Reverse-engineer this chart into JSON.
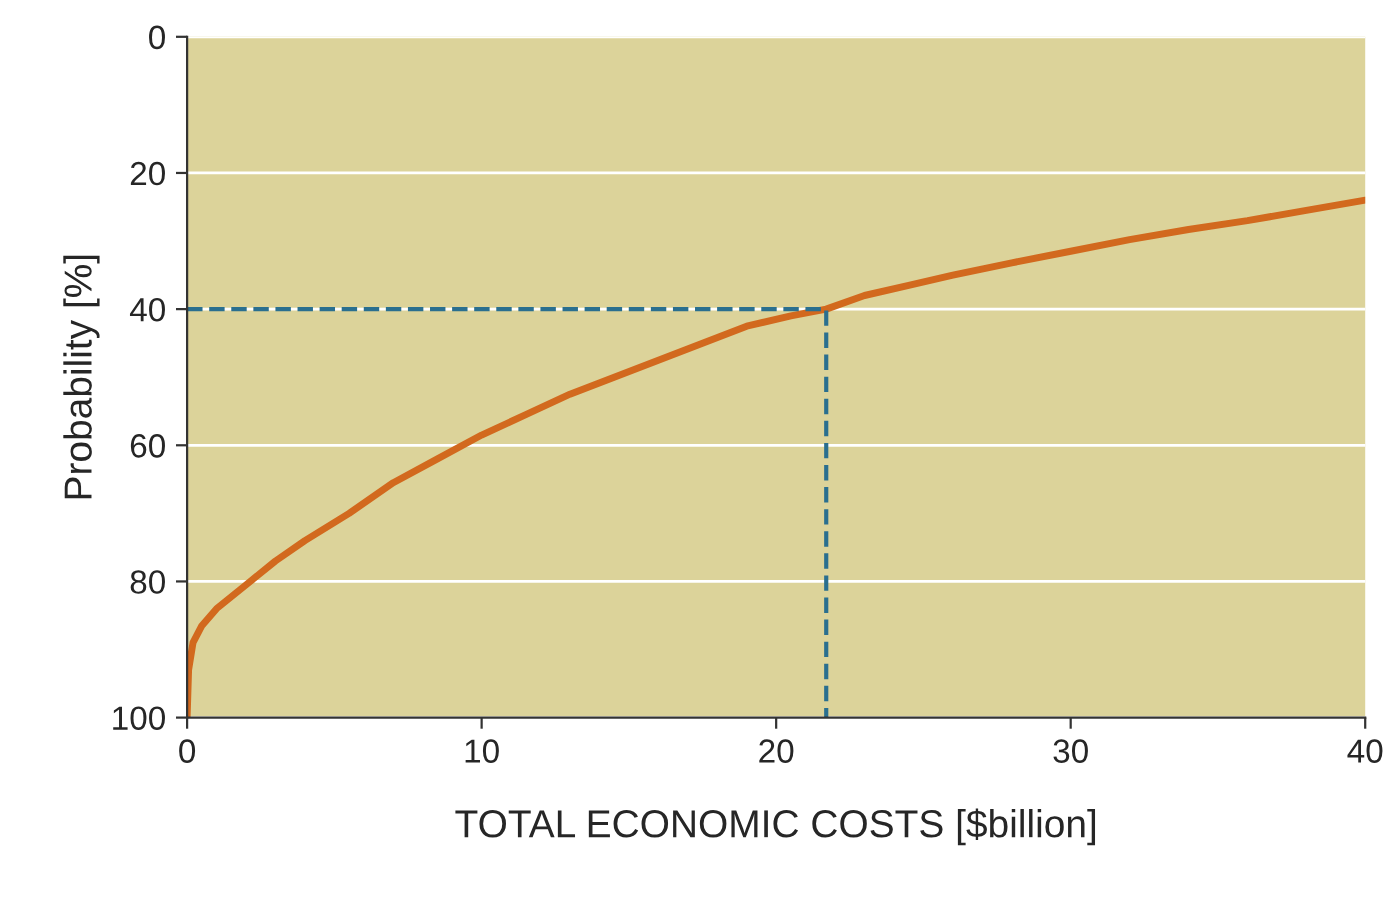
{
  "chart_data": {
    "type": "line",
    "xlabel": "TOTAL ECONOMIC COSTS [$billion]",
    "ylabel": "Probability [%]",
    "xlim": [
      0,
      40
    ],
    "xticks": [
      0,
      10,
      20,
      30,
      40
    ],
    "ylim": [
      100,
      0
    ],
    "yticks": [
      0,
      20,
      40,
      60,
      80,
      100
    ],
    "grid": "y",
    "series": [
      {
        "color": "#d2691e",
        "line_style": "solid",
        "x": [
          0,
          0.05,
          0.2,
          0.5,
          1,
          2,
          3,
          4,
          5.5,
          7,
          8.5,
          10,
          11.5,
          13,
          14.5,
          16,
          17.5,
          19,
          20.5,
          21.7,
          23,
          24.5,
          26,
          28,
          30,
          32,
          34,
          36,
          38,
          40
        ],
        "values": [
          100,
          93,
          89,
          86.5,
          84,
          80.5,
          77,
          74,
          70,
          65.5,
          62,
          58.5,
          55.5,
          52.5,
          50,
          47.5,
          45,
          42.5,
          41,
          40,
          38,
          36.5,
          35,
          33.2,
          31.5,
          29.8,
          28.3,
          27,
          25.5,
          24
        ]
      },
      {
        "color": "#2a6f8f",
        "line_style": "dashed",
        "x": [
          0,
          21.7,
          21.7
        ],
        "values": [
          40,
          40,
          100
        ]
      }
    ]
  }
}
